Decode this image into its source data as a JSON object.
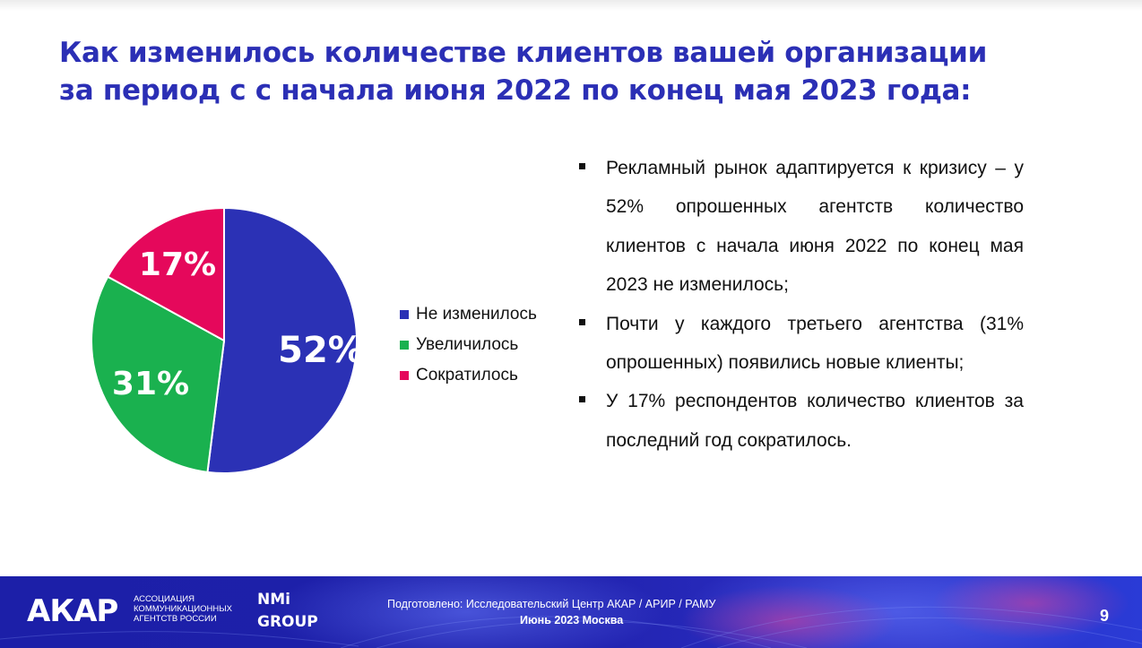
{
  "title": {
    "line1": "Как изменилось количестве клиентов вашей организации",
    "line2": "за период с с начала июня 2022 по конец мая 2023 года:"
  },
  "chart_data": {
    "type": "pie",
    "title": "",
    "slices": [
      {
        "label": "Не изменилось",
        "value": 52,
        "display": "52%",
        "color": "#2b31b5"
      },
      {
        "label": "Увеличилось",
        "value": 31,
        "display": "31%",
        "color": "#1ab14f"
      },
      {
        "label": "Сократилось",
        "value": 17,
        "display": "17%",
        "color": "#e5085b"
      }
    ],
    "legend_position": "right"
  },
  "bullets": [
    "Рекламный рынок адаптируется к кризису – у 52% опрошенных агентств количество клиентов с начала июня 2022 по конец мая 2023 не изменилось;",
    "Почти у каждого третьего агентства (31% опрошенных) появились новые клиенты;",
    "У 17% респондентов количество клиентов за последний год сократилось."
  ],
  "footer": {
    "logo": "АКАР",
    "logo_subtitle": "АССОЦИАЦИЯ КОММУНИКАЦИОННЫХ АГЕНТСТВ РОССИИ",
    "partner_line1": "NMi",
    "partner_line2": "GROUP",
    "prepared_by": "Подготовлено: Исследовательский Центр АКАР / АРИР / РАМУ",
    "date": "Июнь 2023 Москва",
    "page_number": "9"
  },
  "colors": {
    "title": "#2b2fb5",
    "footer_bg": "#1e20aa"
  }
}
